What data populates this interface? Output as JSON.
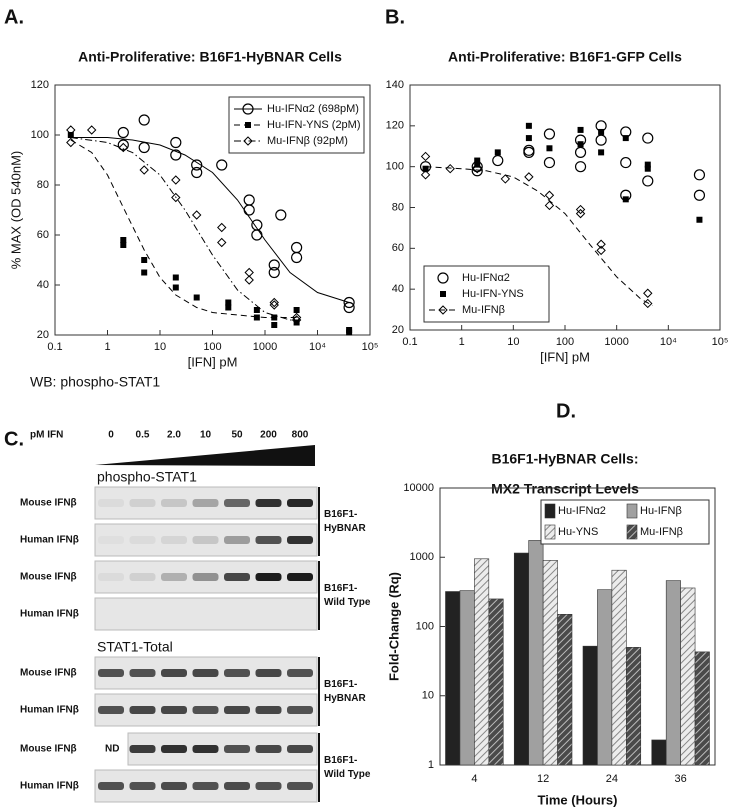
{
  "panels": {
    "a": "A.",
    "b": "B.",
    "c": "C.",
    "d": "D."
  },
  "chart_data": [
    {
      "type": "scatter",
      "title": "Anti-Proliferative: B16F1-HyBNAR Cells",
      "x_label": "[IFN] pM",
      "y_label": "% MAX (OD 540nM)",
      "x_log": true,
      "xlim": [
        0.1,
        100000
      ],
      "ylim": [
        20,
        120
      ],
      "xticks": [
        0.1,
        1,
        10,
        100,
        1000,
        {
          "value": 10000,
          "label": "10⁴"
        },
        {
          "value": 100000,
          "label": "10⁵"
        }
      ],
      "yticks": [
        20,
        40,
        60,
        80,
        100,
        120
      ],
      "legend": "top-right",
      "series": [
        {
          "name": "Hu-IFNα2 (698pM)",
          "marker": "circle",
          "line_style": "solid",
          "color": "#000000",
          "x": [
            2,
            2,
            5,
            5,
            20,
            20,
            50,
            50,
            150,
            500,
            500,
            700,
            700,
            1500,
            1500,
            2000,
            4000,
            4000,
            40000,
            40000
          ],
          "values": [
            101,
            96,
            106,
            95,
            97,
            92,
            88,
            85,
            88,
            74,
            70,
            60,
            64,
            48,
            45,
            68,
            55,
            51,
            33,
            31
          ],
          "fit": {
            "x": [
              0.2,
              1,
              3,
              10,
              30,
              100,
              300,
              1000,
              3000,
              10000,
              40000
            ],
            "values": [
              99,
              99,
              98,
              96,
              92,
              85,
              74,
              58,
              45,
              37,
              33
            ]
          }
        },
        {
          "name": "Hu-IFN-YNS (2pM)",
          "marker": "square",
          "line_style": "dashed",
          "color": "#000000",
          "x": [
            0.2,
            2,
            2,
            5,
            5,
            20,
            20,
            50,
            200,
            200,
            700,
            700,
            1500,
            1500,
            4000,
            4000,
            40000,
            40000
          ],
          "values": [
            100,
            58,
            56,
            50,
            45,
            43,
            39,
            35,
            33,
            31,
            27,
            30,
            27,
            24,
            30,
            25,
            22,
            21
          ],
          "fit": {
            "x": [
              0.2,
              0.5,
              1,
              2,
              5,
              10,
              20,
              50,
              100,
              300,
              1000,
              4000
            ],
            "values": [
              98,
              93,
              84,
              71,
              54,
              43,
              36,
              31,
              29,
              28,
              27,
              27
            ]
          }
        },
        {
          "name": "Mu-IFNβ (92pM)",
          "marker": "diamond",
          "line_style": "dashdot",
          "color": "#000000",
          "x": [
            0.2,
            0.2,
            0.5,
            2,
            5,
            20,
            20,
            50,
            150,
            150,
            500,
            500,
            1500,
            1500,
            4000,
            4000
          ],
          "values": [
            102,
            97,
            102,
            95,
            86,
            82,
            75,
            68,
            63,
            57,
            45,
            42,
            33,
            32,
            27,
            26
          ],
          "fit": {
            "x": [
              0.2,
              1,
              3,
              10,
              30,
              100,
              300,
              1000,
              3000,
              4000
            ],
            "values": [
              99,
              97,
              93,
              84,
              70,
              52,
              38,
              29,
              26,
              26
            ]
          }
        }
      ]
    },
    {
      "type": "scatter",
      "title": "Anti-Proliferative: B16F1-GFP Cells",
      "x_label": "[IFN] pM",
      "x_log": true,
      "xlim": [
        0.1,
        100000
      ],
      "ylim": [
        20,
        140
      ],
      "xticks": [
        0.1,
        1,
        10,
        100,
        1000,
        {
          "value": 10000,
          "label": "10⁴"
        },
        {
          "value": 100000,
          "label": "10⁵"
        }
      ],
      "yticks": [
        20,
        40,
        60,
        80,
        100,
        120,
        140
      ],
      "legend": "bottom-left",
      "series": [
        {
          "name": "Hu-IFNα2",
          "marker": "circle",
          "color": "#000000",
          "x": [
            0.2,
            2,
            2,
            5,
            20,
            20,
            50,
            50,
            200,
            200,
            200,
            500,
            500,
            1500,
            1500,
            1500,
            4000,
            4000,
            40000,
            40000
          ],
          "values": [
            100,
            100,
            98,
            103,
            107,
            108,
            102,
            116,
            107,
            100,
            113,
            120,
            113,
            117,
            102,
            86,
            93,
            114,
            96,
            86
          ]
        },
        {
          "name": "Hu-IFN-YNS",
          "marker": "square",
          "color": "#000000",
          "x": [
            0.2,
            2,
            2,
            5,
            20,
            20,
            50,
            200,
            200,
            500,
            500,
            1500,
            1500,
            4000,
            4000,
            40000
          ],
          "values": [
            99,
            103,
            101,
            107,
            120,
            114,
            109,
            118,
            111,
            117,
            107,
            114,
            84,
            101,
            99,
            74
          ]
        },
        {
          "name": "Mu-IFNβ",
          "marker": "diamond",
          "line_style": "dashed",
          "color": "#000000",
          "x": [
            0.2,
            0.2,
            0.6,
            2,
            7,
            20,
            50,
            50,
            200,
            200,
            500,
            500,
            4000,
            4000
          ],
          "values": [
            105,
            96,
            99,
            99,
            94,
            95,
            86,
            81,
            79,
            77,
            62,
            59,
            38,
            33
          ],
          "fit": {
            "x": [
              0.2,
              1,
              3,
              10,
              30,
              100,
              300,
              1000,
              3000,
              5000
            ],
            "values": [
              100,
              99,
              98,
              95,
              88,
              77,
              62,
              46,
              35,
              32
            ]
          }
        }
      ]
    },
    {
      "type": "bar",
      "title": "B16F1-HyBNAR Cells:",
      "subtitle": "MX2 Transcript Levels",
      "x_label": "Time (Hours)",
      "y_label": "Fold-Change (Rq)",
      "y_log": true,
      "ylim": [
        1,
        10000
      ],
      "yticks": [
        1,
        10,
        100,
        1000,
        10000
      ],
      "legend": "top-right",
      "categories": [
        "4",
        "12",
        "24",
        "36"
      ],
      "series": [
        {
          "name": "Hu-IFNα2",
          "color": "#222222",
          "values": [
            320,
            1150,
            52,
            2.3
          ]
        },
        {
          "name": "Hu-IFNβ",
          "color": "#a0a0a0",
          "values": [
            330,
            1750,
            340,
            460
          ]
        },
        {
          "name": "Hu-YNS",
          "color": "#ececec",
          "hatch_color": "#888888",
          "values": [
            950,
            900,
            650,
            360
          ]
        },
        {
          "name": "Mu-IFNβ",
          "color": "#4a4a4a",
          "hatch_color": "#bbbbbb",
          "values": [
            250,
            150,
            50,
            43
          ]
        }
      ]
    }
  ],
  "blot": {
    "title": "WB: phospho-STAT1",
    "dose_label": "pM IFN",
    "doses": [
      "0",
      "0.5",
      "2.0",
      "10",
      "50",
      "200",
      "800"
    ],
    "nd": "ND",
    "sections": [
      {
        "title": "phospho-STAT1",
        "rows": [
          "Mouse IFNβ",
          "Human IFNβ",
          "Mouse IFNβ",
          "Human IFNβ"
        ],
        "groups": [
          {
            "lines": [
              "B16F1-",
              "HyBNAR"
            ]
          },
          {
            "lines": [
              "B16F1-",
              "Wild Type"
            ]
          }
        ]
      },
      {
        "title": "STAT1-Total",
        "rows": [
          "Mouse IFNβ",
          "Human IFNβ",
          "Mouse IFNβ",
          "Human IFNβ"
        ],
        "groups": [
          {
            "lines": [
              "B16F1-",
              "HyBNAR"
            ]
          },
          {
            "lines": [
              "B16F1-",
              "Wild Type"
            ]
          }
        ]
      }
    ]
  }
}
